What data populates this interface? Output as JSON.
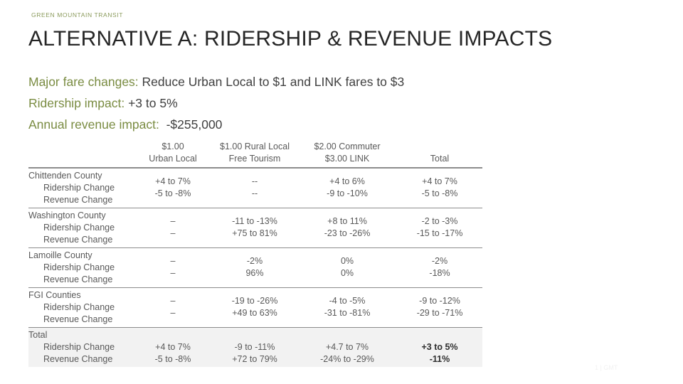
{
  "header": {
    "brand": "GREEN MOUNTAIN TRANSIT",
    "title": "ALTERNATIVE A:  RIDERSHIP & REVENUE IMPACTS"
  },
  "summary": [
    {
      "label": "Major fare changes:",
      "value": " Reduce Urban Local to $1 and LINK fares to $3"
    },
    {
      "label": "Ridership impact:",
      "value": " +3 to 5%"
    },
    {
      "label": "Annual revenue impact:",
      "value": "  -$255,000"
    }
  ],
  "table": {
    "columns": [
      {
        "l1": "$1.00",
        "l2": "Urban Local"
      },
      {
        "l1": "$1.00 Rural Local",
        "l2": "Free Tourism"
      },
      {
        "l1": "$2.00 Commuter",
        "l2": "$3.00 LINK"
      },
      {
        "l1": "",
        "l2": "Total"
      }
    ],
    "rows": [
      {
        "name": "Chittenden County",
        "r1": "Ridership Change",
        "r2": "Revenue Change",
        "cells": [
          [
            "+4 to 7%",
            "-5 to -8%"
          ],
          [
            "--",
            "--"
          ],
          [
            "+4 to 6%",
            "-9 to -10%"
          ],
          [
            "+4 to 7%",
            "-5 to -8%"
          ]
        ]
      },
      {
        "name": "Washington County",
        "r1": "Ridership Change",
        "r2": "Revenue Change",
        "cells": [
          [
            "–",
            "–"
          ],
          [
            "-11 to -13%",
            "+75 to 81%"
          ],
          [
            "+8 to 11%",
            "-23 to -26%"
          ],
          [
            "-2 to -3%",
            "-15 to -17%"
          ]
        ]
      },
      {
        "name": "Lamoille County",
        "r1": "Ridership Change",
        "r2": "Revenue Change",
        "cells": [
          [
            "–",
            "–"
          ],
          [
            "-2%",
            "96%"
          ],
          [
            "0%",
            "0%"
          ],
          [
            "-2%",
            "-18%"
          ]
        ]
      },
      {
        "name": "FGI Counties",
        "r1": "Ridership Change",
        "r2": "Revenue Change",
        "cells": [
          [
            "–",
            "–"
          ],
          [
            "-19 to -26%",
            "+49 to 63%"
          ],
          [
            "-4 to -5%",
            "-31 to -81%"
          ],
          [
            "-9 to -12%",
            "-29 to -71%"
          ]
        ]
      },
      {
        "name": "Total",
        "r1": "Ridership Change",
        "r2": "Revenue Change",
        "cells": [
          [
            "+4 to 7%",
            "-5 to -8%"
          ],
          [
            "-9 to -11%",
            "+72 to 79%"
          ],
          [
            "+4.7 to 7%",
            "-24% to -29%"
          ],
          [
            "+3 to 5%",
            "-11%"
          ]
        ]
      }
    ]
  },
  "footer": {
    "corner_text": "1 | GMT"
  }
}
